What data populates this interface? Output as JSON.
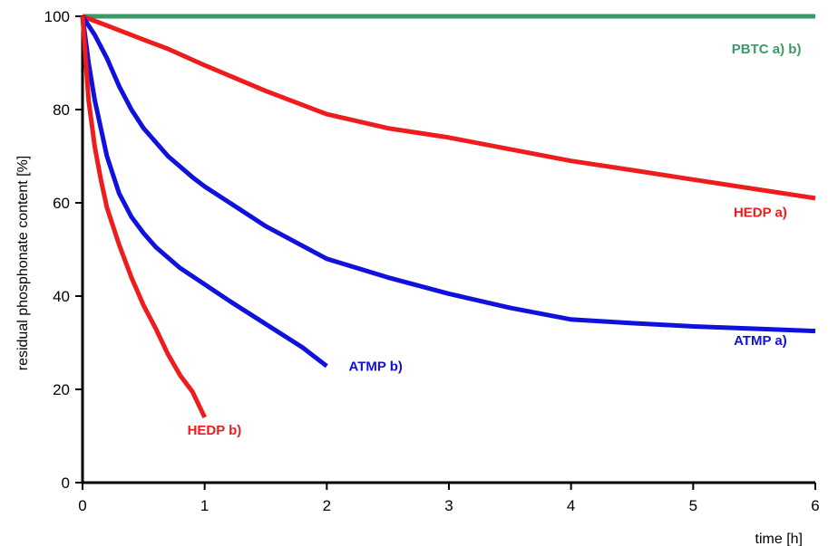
{
  "chart_data": {
    "type": "line",
    "title": "",
    "xlabel": "time [h]",
    "ylabel": "residual phosphonate content [%]",
    "xlim": [
      0,
      6
    ],
    "ylim": [
      0,
      100
    ],
    "xticks": [
      0,
      1,
      2,
      3,
      4,
      5,
      6
    ],
    "yticks": [
      0,
      20,
      40,
      60,
      80,
      100
    ],
    "grid": false,
    "legend": "none",
    "series": [
      {
        "name": "PBTC a) b)",
        "color": "#3a9a6a",
        "x": [
          0,
          1,
          2,
          3,
          4,
          5,
          6
        ],
        "y": [
          100,
          100,
          100,
          100,
          100,
          100,
          100
        ]
      },
      {
        "name": "HEDP a)",
        "color": "#ee1c1c",
        "x": [
          0,
          0.1,
          0.3,
          0.5,
          0.7,
          1.0,
          1.5,
          2.0,
          2.5,
          3.0,
          3.5,
          4.0,
          4.5,
          5.0,
          5.5,
          6.0
        ],
        "y": [
          100,
          99,
          97,
          95,
          93,
          89.5,
          84,
          79,
          76,
          74,
          71.5,
          69,
          67,
          65,
          63,
          61
        ]
      },
      {
        "name": "ATMP a)",
        "color": "#1111dd",
        "x": [
          0,
          0.1,
          0.2,
          0.3,
          0.4,
          0.5,
          0.7,
          0.9,
          1.0,
          1.5,
          2.0,
          2.5,
          3.0,
          3.5,
          4.0,
          4.5,
          5.0,
          5.5,
          6.0
        ],
        "y": [
          100,
          96,
          91,
          85,
          80,
          76,
          70,
          65.5,
          63.5,
          55,
          48,
          44,
          40.5,
          37.5,
          35,
          34.2,
          33.5,
          33,
          32.5
        ]
      },
      {
        "name": "ATMP b)",
        "color": "#1111dd",
        "x": [
          0,
          0.05,
          0.1,
          0.2,
          0.3,
          0.4,
          0.5,
          0.6,
          0.8,
          1.0,
          1.2,
          1.5,
          1.8,
          2.0
        ],
        "y": [
          100,
          90,
          82,
          70,
          62,
          57,
          53.5,
          50.5,
          46,
          42.5,
          39,
          34,
          29,
          25
        ]
      },
      {
        "name": "HEDP b)",
        "color": "#ee1c1c",
        "x": [
          0,
          0.05,
          0.1,
          0.15,
          0.2,
          0.3,
          0.4,
          0.5,
          0.6,
          0.7,
          0.8,
          0.9,
          1.0
        ],
        "y": [
          100,
          82,
          72,
          65,
          59,
          51,
          44,
          38,
          33,
          27.5,
          23,
          19.5,
          14
        ]
      }
    ],
    "annotations": [
      {
        "text": "PBTC a) b)",
        "x": 5.6,
        "y": 92,
        "color": "#3a9a6a"
      },
      {
        "text": "HEDP a)",
        "x": 5.55,
        "y": 57,
        "color": "#ee1c1c"
      },
      {
        "text": "ATMP a)",
        "x": 5.55,
        "y": 29.5,
        "color": "#1111dd"
      },
      {
        "text": "ATMP b)",
        "x": 2.4,
        "y": 24,
        "color": "#1111dd"
      },
      {
        "text": "HEDP b)",
        "x": 1.08,
        "y": 10.3,
        "color": "#ee1c1c"
      }
    ]
  }
}
